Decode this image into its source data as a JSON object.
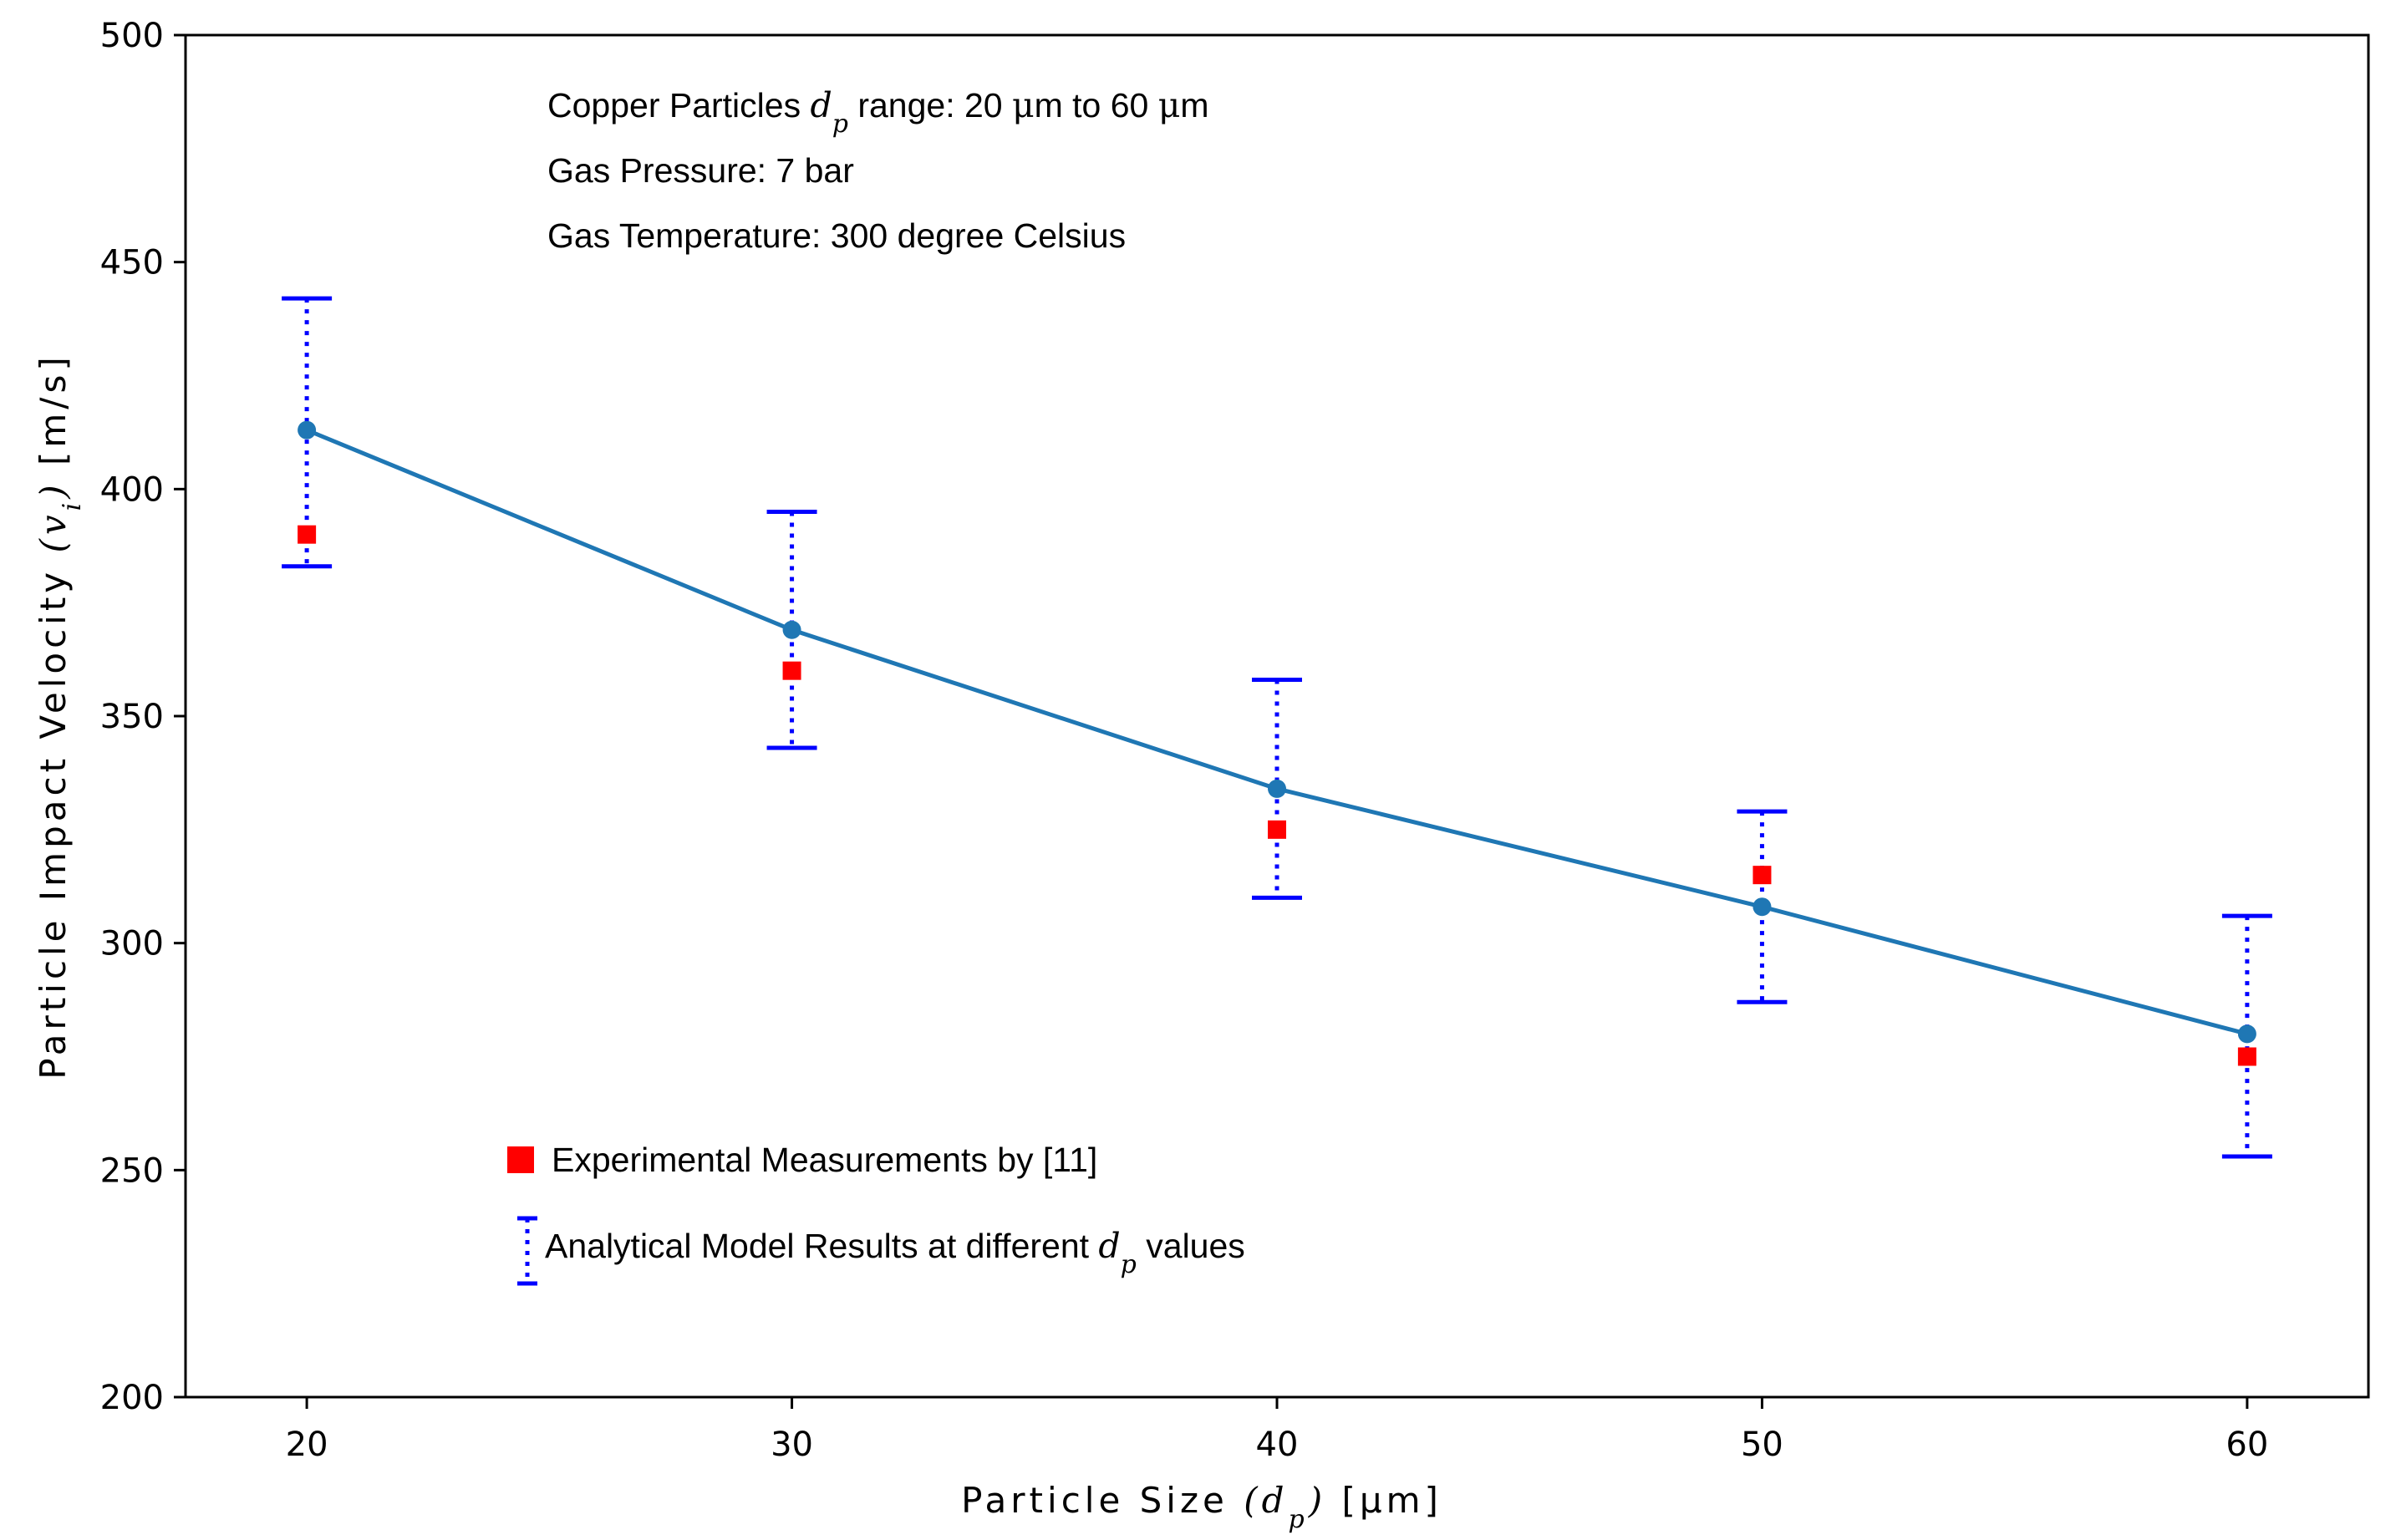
{
  "chart_data": {
    "type": "line",
    "xlabel": {
      "prefix": "Particle Size ",
      "math": "(d",
      "sub": "p",
      "suffix_math": ")",
      "suffix": " [μm]"
    },
    "ylabel": {
      "prefix": "Particle Impact Velocity ",
      "math": "(v",
      "sub": "i",
      "suffix_math": ")",
      "suffix": " [m/s]"
    },
    "xlim": [
      17.5,
      62.5
    ],
    "ylim": [
      200,
      500
    ],
    "xticks": [
      20,
      30,
      40,
      50,
      60
    ],
    "xtick_labels": [
      "20",
      "30",
      "40",
      "50",
      "60"
    ],
    "yticks": [
      200,
      250,
      300,
      350,
      400,
      450,
      500
    ],
    "ytick_labels": [
      "200",
      "250",
      "300",
      "350",
      "400",
      "450",
      "500"
    ],
    "grid": false,
    "series": [
      {
        "name": "Analytical Model Results at different d_p values",
        "kind": "line+errorbar",
        "color": "#1f77b4",
        "errorbar_color": "#0000ff",
        "x": [
          20,
          30,
          40,
          50,
          60
        ],
        "y": [
          413,
          369,
          334,
          308,
          280
        ],
        "err_low": [
          383,
          343,
          310,
          287,
          253
        ],
        "err_high": [
          442,
          395,
          358,
          329,
          306
        ]
      },
      {
        "name": "Experimental Measurements by [11]",
        "kind": "scatter",
        "marker": "square",
        "color": "#ff0000",
        "x": [
          20,
          30,
          40,
          50,
          60
        ],
        "y": [
          390,
          360,
          325,
          315,
          275
        ]
      }
    ],
    "annotations": [
      {
        "parts": [
          {
            "t": "Copper Particles "
          },
          {
            "m": "d",
            "sub": "p"
          },
          {
            "t": " range: 20 "
          },
          {
            "m": "μ",
            "upright": true
          },
          {
            "t": "m to 60 "
          },
          {
            "m": "μ",
            "upright": true
          },
          {
            "t": "m"
          }
        ]
      },
      {
        "parts": [
          {
            "t": "Gas Pressure: 7 bar"
          }
        ]
      },
      {
        "parts": [
          {
            "t": "Gas Temperature: 300 degree Celsius"
          }
        ]
      }
    ],
    "legend": {
      "placement": "lower-left",
      "items": [
        {
          "marker": "square",
          "label_parts": [
            {
              "t": "Experimental Measurements by [11]"
            }
          ]
        },
        {
          "marker": "errorbar",
          "label_parts": [
            {
              "t": "Analytical Model Results at different "
            },
            {
              "m": "d",
              "sub": "p"
            },
            {
              "t": " values"
            }
          ]
        }
      ]
    }
  }
}
